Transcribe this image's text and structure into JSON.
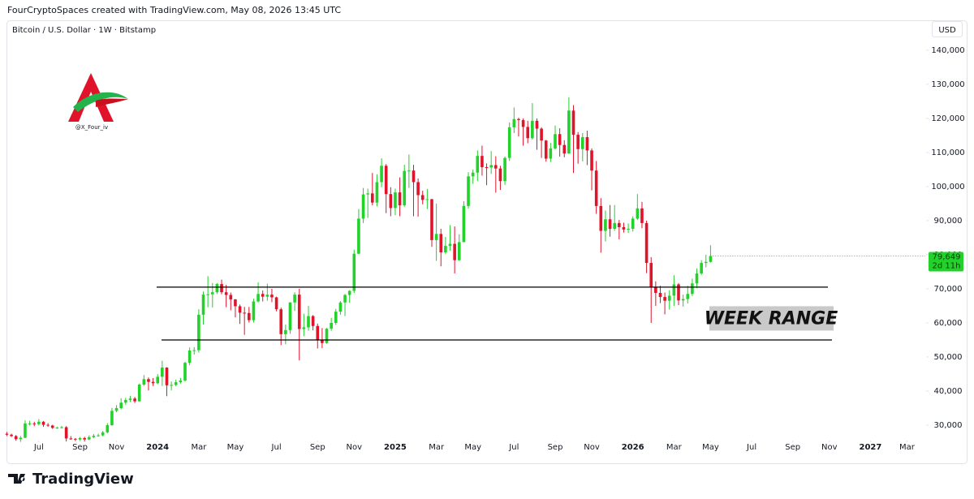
{
  "header_text": "FourCryptoSpaces created with TradingView.com, May 08, 2026 13:45 UTC",
  "brand": "TradingView",
  "logo_handle": "@X_Four_iv",
  "chart_data": {
    "type": "candlestick",
    "symbol": "Bitcoin / U.S. Dollar · 1W · Bitstamp",
    "currency": "USD",
    "up_color": "#22d12a",
    "down_color": "#e0132b",
    "grid": false,
    "annotation": "WEEK RANGE",
    "levels": [
      70500,
      55000
    ],
    "last_price_label": "79,649",
    "countdown": "2d 11h",
    "xlim": [
      -1.5,
      201
    ],
    "xticks": [
      {
        "value": 7,
        "label": "Jul"
      },
      {
        "value": 16,
        "label": "Sep"
      },
      {
        "value": 24,
        "label": "Nov"
      },
      {
        "value": 33,
        "label": "2024"
      },
      {
        "value": 42,
        "label": "Mar"
      },
      {
        "value": 50,
        "label": "May"
      },
      {
        "value": 59,
        "label": "Jul"
      },
      {
        "value": 68,
        "label": "Sep"
      },
      {
        "value": 76,
        "label": "Nov"
      },
      {
        "value": 85,
        "label": "2025"
      },
      {
        "value": 94,
        "label": "Mar"
      },
      {
        "value": 102,
        "label": "May"
      },
      {
        "value": 111,
        "label": "Jul"
      },
      {
        "value": 120,
        "label": "Sep"
      },
      {
        "value": 128,
        "label": "Nov"
      },
      {
        "value": 137,
        "label": "2026"
      },
      {
        "value": 146,
        "label": "Mar"
      },
      {
        "value": 154,
        "label": "May"
      },
      {
        "value": 163,
        "label": "Jul"
      },
      {
        "value": 172,
        "label": "Sep"
      },
      {
        "value": 180,
        "label": "Nov"
      },
      {
        "value": 189,
        "label": "2027"
      },
      {
        "value": 197,
        "label": "Mar"
      }
    ],
    "ylim": [
      25000,
      147600
    ],
    "yticks": [
      {
        "value": 30000,
        "label": "30,000"
      },
      {
        "value": 40000,
        "label": "40,000"
      },
      {
        "value": 50000,
        "label": "50,000"
      },
      {
        "value": 60000,
        "label": "60,000"
      },
      {
        "value": 70000,
        "label": "70,000"
      },
      {
        "value": 80000,
        "label": "80,000"
      },
      {
        "value": 90000,
        "label": "90,000"
      },
      {
        "value": 100000,
        "label": "100,000"
      },
      {
        "value": 110000,
        "label": "110,000"
      },
      {
        "value": 120000,
        "label": "120,000"
      },
      {
        "value": 130000,
        "label": "130,000"
      },
      {
        "value": 140000,
        "label": "140,000"
      }
    ],
    "open": [
      27500,
      27200,
      26800,
      25900,
      26300,
      30500,
      30500,
      30300,
      31000,
      30100,
      29900,
      29200,
      29300,
      29400,
      26100,
      26000,
      25800,
      26200,
      25800,
      26500,
      26900,
      27000,
      27900,
      30000,
      34200,
      35000,
      36600,
      37400,
      37800,
      37000,
      41900,
      43500,
      42700,
      42300,
      44200,
      46900,
      41700,
      41800,
      42600,
      43100,
      48300,
      51900,
      52000,
      62400,
      68300,
      68400,
      69000,
      71400,
      69000,
      68200,
      66900,
      64900,
      63000,
      62900,
      60800,
      66300,
      68500,
      67700,
      68300,
      67500,
      64000,
      56700,
      57900,
      66000,
      68300,
      58200,
      58700,
      62000,
      59100,
      55100,
      54100,
      58300,
      60000,
      63300,
      66000,
      68200,
      69400,
      80300,
      90600,
      97700,
      98000,
      95300,
      101300,
      106100,
      97800,
      93700,
      98300,
      94500,
      104600,
      104700,
      101300,
      97500,
      96100,
      96300,
      84300,
      86100,
      80700,
      82600,
      83200,
      78400,
      83700,
      94300,
      103000,
      104100,
      109000,
      105700,
      105600,
      106300,
      105300,
      101600,
      108400,
      117400,
      119800,
      119500,
      117500,
      114200,
      119300,
      117000,
      113500,
      108200,
      111200,
      115400,
      112200,
      109700,
      122300,
      115200,
      111000,
      114500,
      110600,
      104700,
      94300,
      87000,
      90400,
      87600,
      89300,
      88100,
      87400,
      87600,
      90600,
      93600,
      89300,
      77600,
      70500,
      68800,
      67600,
      66500,
      68000,
      71300,
      66600,
      67000,
      68500,
      71600,
      74500,
      77600,
      77900
    ],
    "high": [
      28000,
      27500,
      27100,
      26800,
      31400,
      31300,
      31000,
      31800,
      31200,
      30600,
      30100,
      29500,
      29800,
      29700,
      26800,
      26200,
      26500,
      26600,
      27000,
      27400,
      27500,
      28300,
      30600,
      35100,
      35900,
      37900,
      38000,
      38600,
      38300,
      42200,
      44700,
      44000,
      43800,
      45000,
      48900,
      47000,
      42800,
      43400,
      43900,
      48600,
      52800,
      52900,
      64000,
      69200,
      73700,
      71700,
      71700,
      72700,
      71200,
      68900,
      67000,
      65400,
      64700,
      64700,
      67100,
      71900,
      69500,
      71500,
      70000,
      67700,
      64500,
      59500,
      66100,
      69000,
      70000,
      62700,
      65000,
      62300,
      59800,
      58500,
      58500,
      61500,
      64100,
      66400,
      68500,
      69600,
      81500,
      93400,
      99600,
      99400,
      104000,
      103600,
      108300,
      106600,
      99800,
      99400,
      102700,
      106400,
      109400,
      106400,
      102400,
      98800,
      99300,
      96400,
      95000,
      87600,
      85200,
      88700,
      88300,
      86000,
      95700,
      104200,
      105000,
      110600,
      112000,
      106800,
      110400,
      108900,
      106100,
      108800,
      118800,
      123200,
      120200,
      120000,
      119300,
      124500,
      120000,
      117400,
      113700,
      112800,
      117900,
      117100,
      113600,
      126200,
      123900,
      116000,
      115700,
      116400,
      111200,
      107500,
      96600,
      93000,
      94600,
      94600,
      90200,
      89400,
      89200,
      91300,
      97800,
      95500,
      90000,
      79300,
      72200,
      70900,
      68900,
      69600,
      74000,
      71700,
      68300,
      70900,
      73000,
      76000,
      78400,
      80000,
      82800
    ],
    "low": [
      26800,
      26500,
      25400,
      25100,
      26200,
      29900,
      29700,
      29900,
      29500,
      29500,
      28900,
      28900,
      29000,
      25200,
      25700,
      25300,
      25500,
      25200,
      25600,
      26200,
      26600,
      26700,
      27600,
      29800,
      33800,
      34600,
      36000,
      36800,
      36500,
      36900,
      41500,
      40200,
      41500,
      42000,
      41500,
      38500,
      40200,
      41400,
      42200,
      42800,
      47600,
      50700,
      51300,
      59500,
      64600,
      64500,
      68500,
      68400,
      64600,
      63700,
      61600,
      59700,
      56500,
      60100,
      60100,
      66000,
      66300,
      66500,
      66100,
      63400,
      53500,
      53700,
      56800,
      63500,
      49000,
      56100,
      57700,
      57800,
      52500,
      52600,
      53900,
      57700,
      59400,
      62400,
      62000,
      65900,
      68800,
      80200,
      89300,
      90800,
      94500,
      94200,
      99800,
      92200,
      91300,
      91600,
      91300,
      94100,
      99600,
      91300,
      91200,
      94800,
      93400,
      82300,
      78200,
      76600,
      80200,
      81200,
      74500,
      78200,
      83700,
      93500,
      100800,
      101600,
      103200,
      100400,
      103700,
      98200,
      99000,
      100500,
      107500,
      115700,
      114700,
      112000,
      112700,
      113800,
      110800,
      108400,
      107300,
      107200,
      110900,
      108800,
      108600,
      109600,
      104000,
      106700,
      107400,
      106300,
      98900,
      92000,
      80600,
      83900,
      85300,
      87000,
      84500,
      86500,
      86400,
      86800,
      90200,
      87800,
      74600,
      60000,
      65000,
      65800,
      62500,
      63900,
      65000,
      65200,
      64800,
      65700,
      67900,
      70200,
      74100,
      76300,
      77700
    ],
    "close": [
      27200,
      26800,
      25900,
      26300,
      30500,
      30500,
      30300,
      31000,
      30100,
      29900,
      29200,
      29300,
      29400,
      26100,
      26000,
      25800,
      26200,
      25800,
      26500,
      26900,
      27000,
      27900,
      30000,
      34200,
      35000,
      36600,
      37400,
      37800,
      37000,
      41900,
      43500,
      42700,
      42300,
      44200,
      46900,
      41700,
      41800,
      42600,
      43100,
      48300,
      51900,
      52000,
      62400,
      68300,
      68400,
      69000,
      71400,
      69000,
      68200,
      66900,
      64900,
      63000,
      62900,
      60800,
      66300,
      68500,
      67700,
      68300,
      67500,
      64000,
      56700,
      57900,
      66000,
      68300,
      58200,
      58700,
      62000,
      59100,
      55100,
      54100,
      58300,
      60000,
      63300,
      66000,
      68200,
      69400,
      80300,
      90600,
      97700,
      98000,
      95300,
      101300,
      106100,
      97800,
      93700,
      98300,
      94500,
      104600,
      104700,
      101300,
      97500,
      96100,
      96300,
      84300,
      86100,
      80700,
      82600,
      83200,
      78400,
      83700,
      94300,
      103000,
      104100,
      109000,
      105700,
      105600,
      106300,
      105300,
      101600,
      108400,
      117400,
      119800,
      119500,
      117500,
      114200,
      119300,
      117000,
      113500,
      108200,
      111200,
      115400,
      112200,
      109700,
      122300,
      115200,
      111000,
      114500,
      110600,
      104700,
      94300,
      87000,
      90400,
      87600,
      89300,
      88100,
      87400,
      87600,
      90600,
      93600,
      89300,
      77600,
      70500,
      68800,
      67600,
      66500,
      68000,
      71300,
      66600,
      67000,
      68500,
      71600,
      74500,
      77600,
      77900,
      79649
    ]
  }
}
